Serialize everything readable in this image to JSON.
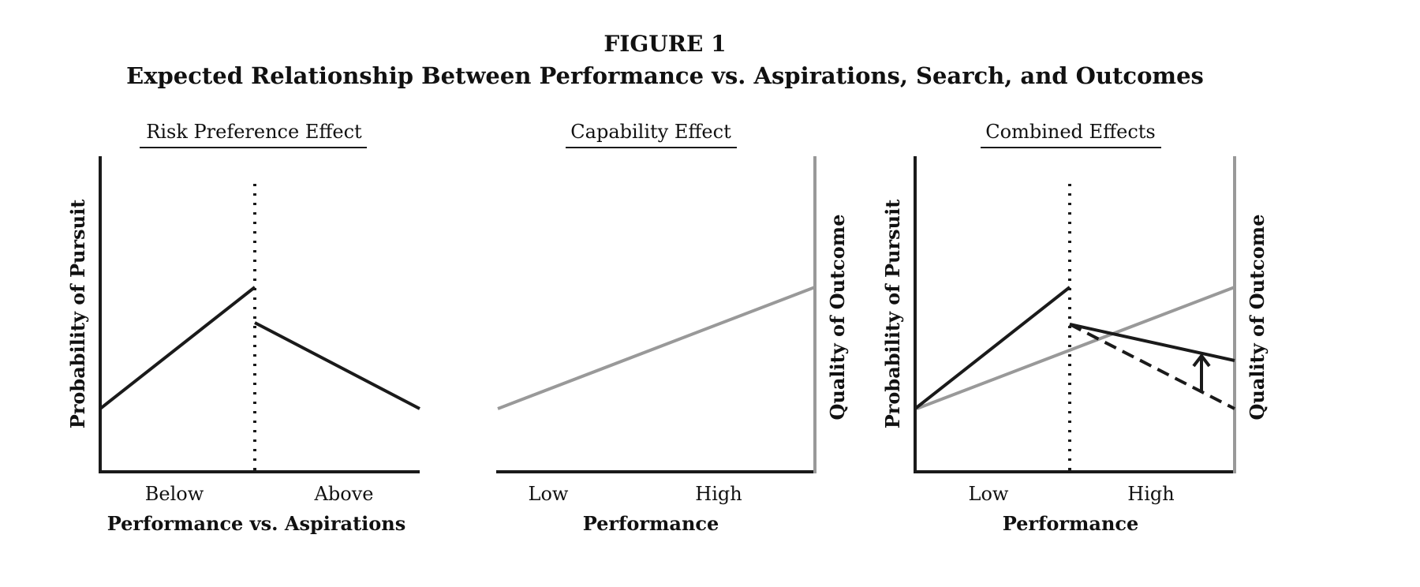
{
  "figure": {
    "label": "FIGURE 1",
    "title": "Expected Relationship Between Performance vs. Aspirations, Search, and Outcomes"
  },
  "panels": [
    {
      "title": "Risk Preference Effect",
      "left_axis_label": "Probability of Pursuit",
      "right_axis_label": "",
      "x_ticks": [
        "Below",
        "Above"
      ],
      "x_axis_label": "Performance vs. Aspirations"
    },
    {
      "title": "Capability Effect",
      "left_axis_label": "",
      "right_axis_label": "Quality of Outcome",
      "x_ticks": [
        "Low",
        "High"
      ],
      "x_axis_label": "Performance"
    },
    {
      "title": "Combined Effects",
      "left_axis_label": "Probability of Pursuit",
      "right_axis_label": "Quality of Outcome",
      "x_ticks": [
        "Low",
        "High"
      ],
      "x_axis_label": "Performance"
    }
  ],
  "colors": {
    "black_line": "#1a1a1a",
    "grey_line": "#999999",
    "text": "#111111"
  }
}
